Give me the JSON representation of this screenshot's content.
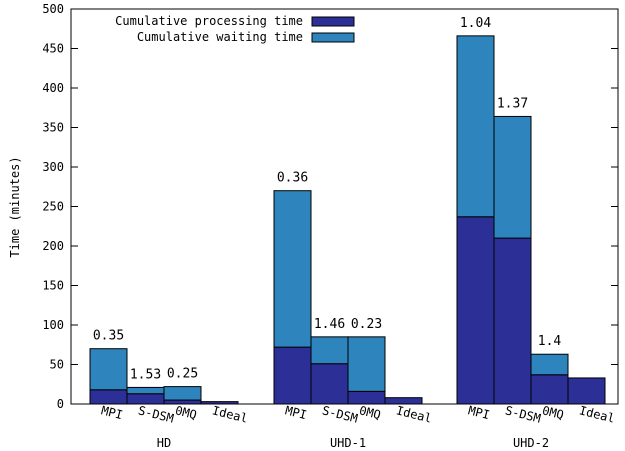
{
  "chart_data": {
    "type": "bar",
    "stacked": true,
    "ylabel": "Time (minutes)",
    "ylim": [
      0,
      500
    ],
    "y_ticks": [
      "0",
      "50",
      "100",
      "150",
      "200",
      "250",
      "300",
      "350",
      "400",
      "450",
      "500"
    ],
    "grid": false,
    "legend_position": "top-left",
    "groups": [
      {
        "name": "HD",
        "bars": [
          {
            "label": "MPI",
            "processing": 18,
            "waiting": 52,
            "annotation": "0.35"
          },
          {
            "label": "S-DSM",
            "processing": 13,
            "waiting": 8,
            "annotation": "1.53"
          },
          {
            "label": "0MQ",
            "processing": 5,
            "waiting": 17,
            "annotation": "0.25"
          },
          {
            "label": "Ideal",
            "processing": 3,
            "waiting": 0,
            "annotation": ""
          }
        ]
      },
      {
        "name": "UHD-1",
        "bars": [
          {
            "label": "MPI",
            "processing": 72,
            "waiting": 198,
            "annotation": "0.36"
          },
          {
            "label": "S-DSM",
            "processing": 51,
            "waiting": 34,
            "annotation": "1.46"
          },
          {
            "label": "0MQ",
            "processing": 16,
            "waiting": 69,
            "annotation": "0.23"
          },
          {
            "label": "Ideal",
            "processing": 8,
            "waiting": 0,
            "annotation": ""
          }
        ]
      },
      {
        "name": "UHD-2",
        "bars": [
          {
            "label": "MPI",
            "processing": 237,
            "waiting": 229,
            "annotation": "1.04"
          },
          {
            "label": "S-DSM",
            "processing": 210,
            "waiting": 154,
            "annotation": "1.37"
          },
          {
            "label": "0MQ",
            "processing": 37,
            "waiting": 26,
            "annotation": "1.4"
          },
          {
            "label": "Ideal",
            "processing": 33,
            "waiting": 0,
            "annotation": ""
          }
        ]
      }
    ],
    "series": [
      {
        "name": "Cumulative processing time",
        "key": "processing",
        "color": "#2b2f96"
      },
      {
        "name": "Cumulative waiting time",
        "key": "waiting",
        "color": "#2e84bd"
      }
    ]
  }
}
